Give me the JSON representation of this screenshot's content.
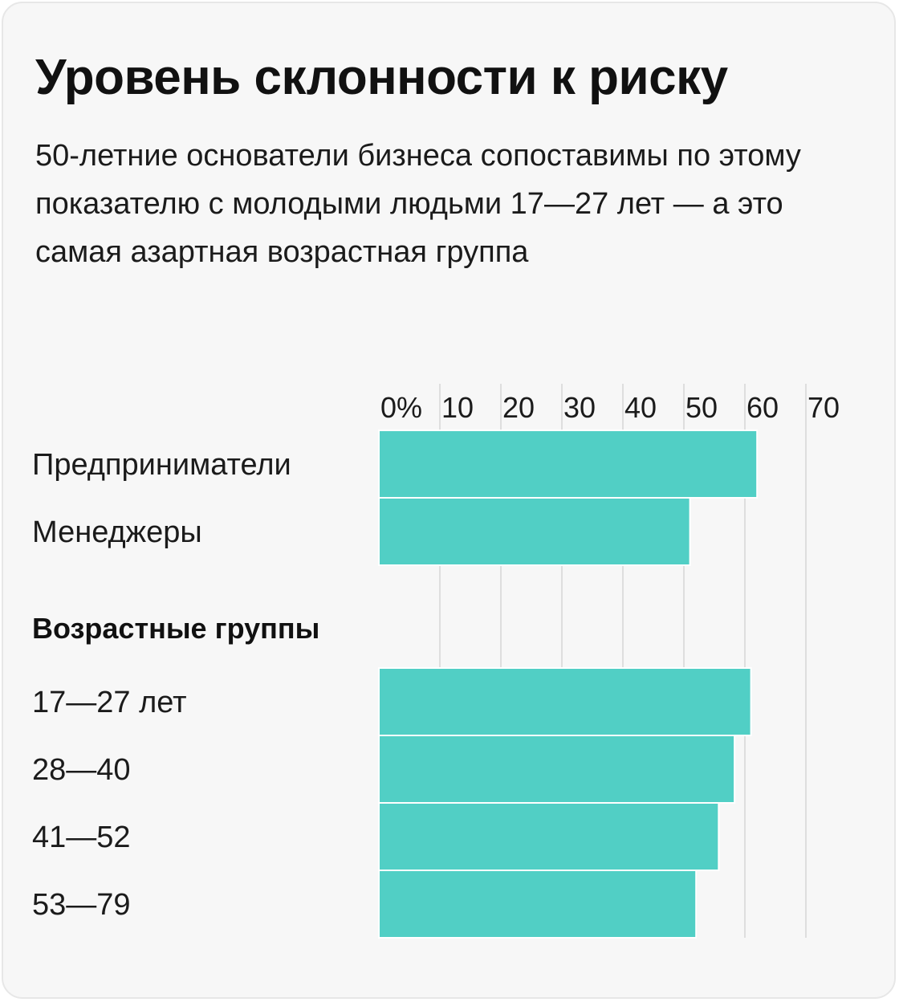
{
  "title": "Уровень склонности к риску",
  "subtitle": "50-летние основатели бизнеса сопоставимы по этому показателю с молодыми людьми 17—27 лет — а это самая азартная возрастная группа",
  "colors": {
    "bar": "#51cfc5",
    "bar_border": "#ffffff",
    "grid": "#d6d6d6",
    "card_bg": "#f7f7f7",
    "card_border": "#e7e7e7"
  },
  "chart_data": {
    "type": "bar",
    "orientation": "horizontal",
    "xlim": [
      0,
      70
    ],
    "x_ticks": [
      "0%",
      "10",
      "20",
      "30",
      "40",
      "50",
      "60",
      "70"
    ],
    "grid": true,
    "groups": [
      {
        "label": "",
        "categories": [
          "Предприниматели",
          "Менеджеры"
        ],
        "values": [
          62,
          51
        ]
      },
      {
        "label": "Возрастные группы",
        "categories": [
          "17—27 лет",
          "28—40",
          "41—52",
          "53—79"
        ],
        "values": [
          61,
          58.3,
          55.7,
          52
        ]
      }
    ]
  }
}
